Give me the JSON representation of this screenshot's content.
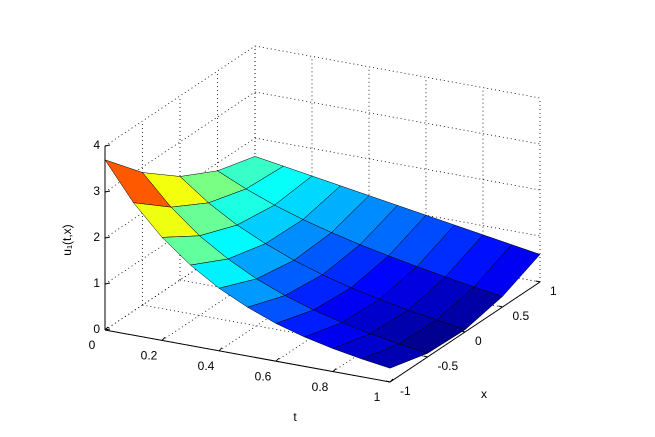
{
  "chart_data": {
    "type": "surface",
    "tlabel": "t",
    "xlabel": "x",
    "zlabel": "u₁(t,x)",
    "t": [
      0,
      0.1,
      0.2,
      0.3,
      0.4,
      0.5,
      0.6,
      0.7,
      0.8,
      0.9,
      1
    ],
    "x": [
      -1,
      -0.5,
      0,
      0.5,
      1
    ],
    "z": [
      [
        3.7,
        2.88,
        2.25,
        1.83,
        1.6
      ],
      [
        2.88,
        2.24,
        1.79,
        1.55,
        1.5
      ],
      [
        2.24,
        1.73,
        1.42,
        1.31,
        1.4
      ],
      [
        1.75,
        1.34,
        1.13,
        1.11,
        1.3
      ],
      [
        1.36,
        1.02,
        0.88,
        0.94,
        1.2
      ],
      [
        1.06,
        0.77,
        0.68,
        0.79,
        1.1
      ],
      [
        0.82,
        0.57,
        0.51,
        0.66,
        1.0
      ],
      [
        0.64,
        0.41,
        0.37,
        0.54,
        0.9
      ],
      [
        0.5,
        0.28,
        0.25,
        0.43,
        0.8
      ],
      [
        0.39,
        0.17,
        0.15,
        0.32,
        0.7
      ],
      [
        0.3,
        0.08,
        0.05,
        0.23,
        0.6
      ]
    ],
    "colormap": "jet",
    "grid": true,
    "tlim": [
      0,
      1
    ],
    "xlim": [
      -1,
      1
    ],
    "zlim": [
      0,
      4
    ],
    "tticks": [
      0,
      0.2,
      0.4,
      0.6,
      0.8,
      1
    ],
    "xticks": [
      -1,
      -0.5,
      0,
      0.5,
      1
    ],
    "zticks": [
      0,
      1,
      2,
      3,
      4
    ]
  }
}
